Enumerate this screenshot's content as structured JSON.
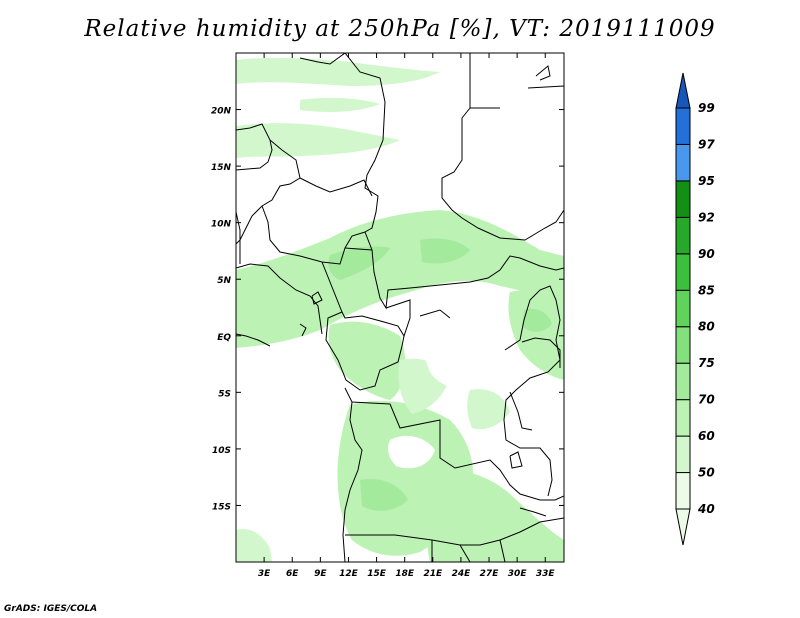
{
  "title": "Relative humidity at 250hPa [%], VT: 2019111009",
  "credit": "GrADS: IGES/COLA",
  "map": {
    "variable": "Relative humidity",
    "level": "250hPa",
    "units": "%",
    "valid_time": "2019111009",
    "lon_range": [
      0,
      35
    ],
    "lat_range": [
      -20,
      25
    ],
    "lat_labels": [
      "20N",
      "15N",
      "10N",
      "5N",
      "EQ",
      "5S",
      "10S",
      "15S"
    ],
    "lon_labels": [
      "3E",
      "6E",
      "9E",
      "12E",
      "15E",
      "18E",
      "21E",
      "24E",
      "27E",
      "30E",
      "33E"
    ]
  },
  "colorbar": {
    "bins": [
      {
        "low": 40,
        "high": 50,
        "color": "#ebfbe8"
      },
      {
        "low": 50,
        "high": 60,
        "color": "#d3f7cd"
      },
      {
        "low": 60,
        "high": 70,
        "color": "#bdf2b5"
      },
      {
        "low": 70,
        "high": 75,
        "color": "#a3ea9c"
      },
      {
        "low": 75,
        "high": 80,
        "color": "#84e07c"
      },
      {
        "low": 80,
        "high": 85,
        "color": "#5fd35a"
      },
      {
        "low": 85,
        "high": 90,
        "color": "#3cbf3a"
      },
      {
        "low": 90,
        "high": 92,
        "color": "#27a829"
      },
      {
        "low": 92,
        "high": 95,
        "color": "#128f14"
      },
      {
        "low": 95,
        "high": 97,
        "color": "#4a98ee"
      },
      {
        "low": 97,
        "high": 99,
        "color": "#2270d8"
      },
      {
        "low": 99,
        "high": 100,
        "color": "#1757bc"
      }
    ],
    "labels": [
      "40",
      "50",
      "60",
      "70",
      "75",
      "80",
      "85",
      "90",
      "92",
      "95",
      "97",
      "99"
    ]
  }
}
